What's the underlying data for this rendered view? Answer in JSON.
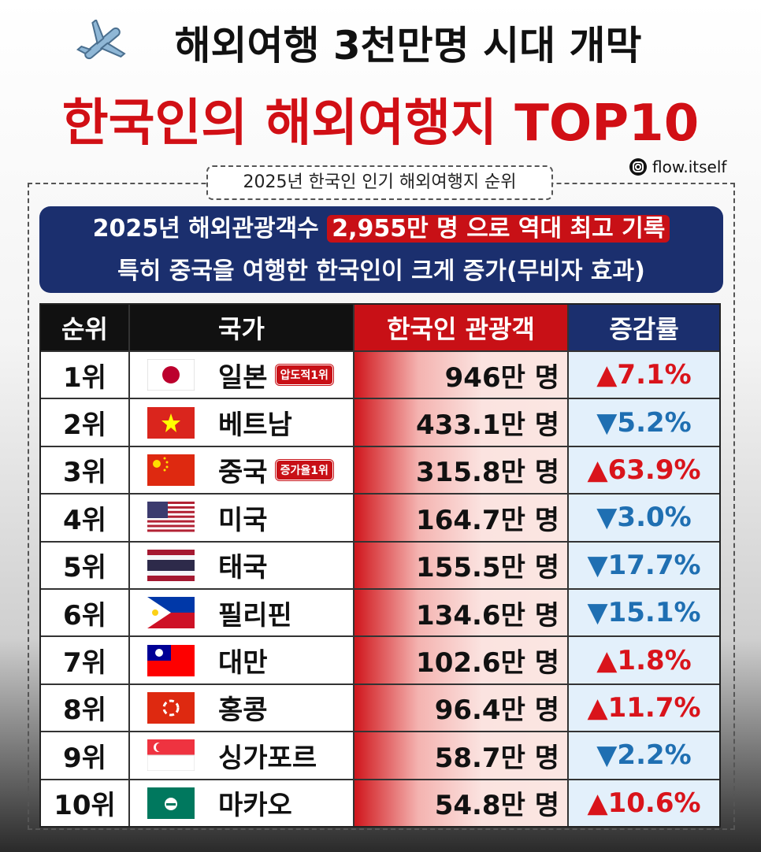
{
  "header": {
    "title_line1": "해외여행 3천만명 시대 개막",
    "title_line2": "한국인의 해외여행지 TOP10",
    "subtitle": "2025년 한국인 인기 해외여행지 순위",
    "handle": "flow.itself"
  },
  "banner": {
    "line1_lead": "2025년 해외관광객수",
    "line1_highlight": "2,955만 명 으로 역대 최고 기록",
    "line2": "특히 중국을 여행한 한국인이 크게 증가(무비자 효과)"
  },
  "table": {
    "header": [
      "순위",
      "국가",
      "한국인 관광객",
      "증감률"
    ],
    "rows": [
      {
        "rank": "1위",
        "country": "일본",
        "badge": "압도적1위",
        "visitors": "946만 명",
        "change": "▲7.1%"
      },
      {
        "rank": "2위",
        "country": "베트남",
        "visitors": "433.1만 명",
        "change": "▼5.2%"
      },
      {
        "rank": "3위",
        "country": "중국",
        "badge": "증가율1위",
        "visitors": "315.8만 명",
        "change": "▲63.9%"
      },
      {
        "rank": "4위",
        "country": "미국",
        "visitors": "164.7만 명",
        "change": "▼3.0%"
      },
      {
        "rank": "5위",
        "country": "태국",
        "visitors": "155.5만 명",
        "change": "▼17.7%"
      },
      {
        "rank": "6위",
        "country": "필리핀",
        "visitors": "134.6만 명",
        "change": "▼15.1%"
      },
      {
        "rank": "7위",
        "country": "대만",
        "visitors": "102.6만 명",
        "change": "▲1.8%"
      },
      {
        "rank": "8위",
        "country": "홍콩",
        "visitors": "96.4만 명",
        "change": "▲11.7%"
      },
      {
        "rank": "9위",
        "country": "싱가포르",
        "visitors": "58.7만 명",
        "change": "▼2.2%"
      },
      {
        "rank": "10위",
        "country": "마카오",
        "visitors": "54.8만 명",
        "change": "▲10.6%"
      }
    ]
  }
}
